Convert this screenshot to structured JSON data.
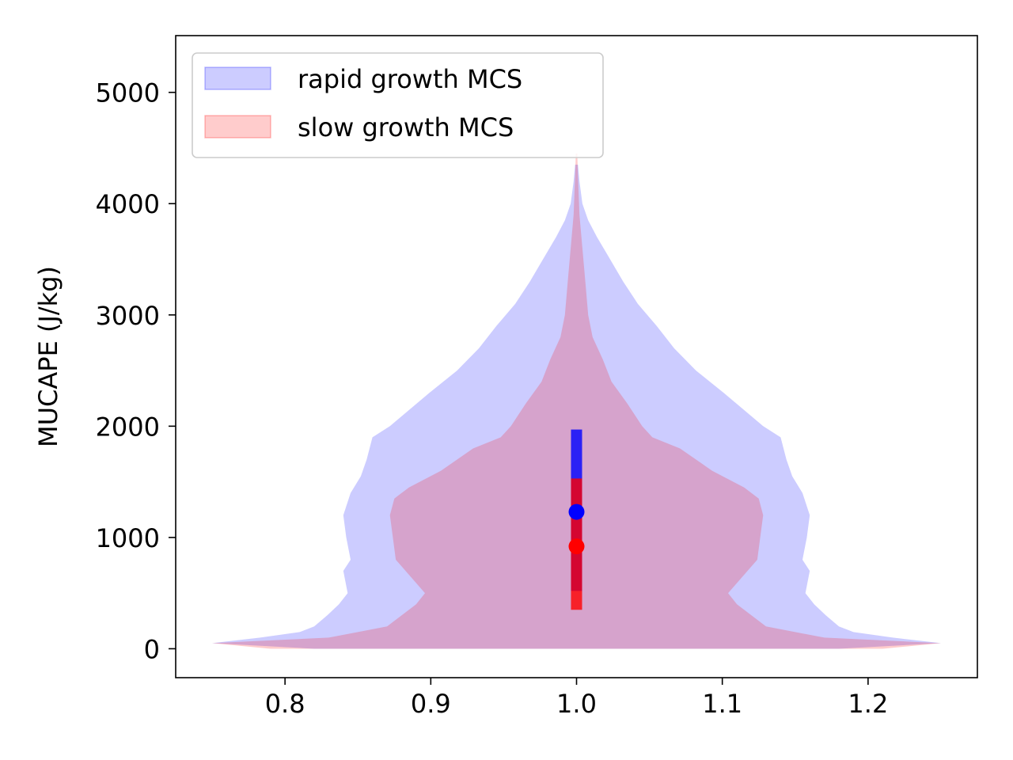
{
  "chart_data": {
    "type": "violin",
    "title": "",
    "xlabel": "",
    "ylabel": "MUCAPE (J/kg)",
    "xlim": [
      0.725,
      1.275
    ],
    "ylim": [
      -260,
      5510
    ],
    "xticks": [
      0.8,
      0.9,
      1.0,
      1.1,
      1.2
    ],
    "xtick_labels": [
      "0.8",
      "0.9",
      "1.0",
      "1.1",
      "1.2"
    ],
    "yticks": [
      0,
      1000,
      2000,
      3000,
      4000,
      5000
    ],
    "ytick_labels": [
      "0",
      "1000",
      "2000",
      "3000",
      "4000",
      "5000"
    ],
    "grid": false,
    "legend_position": "top-left",
    "position": 1.0,
    "series": [
      {
        "name": "rapid growth MCS",
        "color": "#0000ff",
        "fill_alpha": 0.2,
        "profile": [
          [
            0,
            0.18
          ],
          [
            50,
            0.25
          ],
          [
            100,
            0.217
          ],
          [
            150,
            0.19
          ],
          [
            200,
            0.18
          ],
          [
            300,
            0.171
          ],
          [
            400,
            0.163
          ],
          [
            500,
            0.157
          ],
          [
            700,
            0.16
          ],
          [
            800,
            0.155
          ],
          [
            1000,
            0.158
          ],
          [
            1200,
            0.16
          ],
          [
            1400,
            0.155
          ],
          [
            1550,
            0.148
          ],
          [
            1700,
            0.144
          ],
          [
            1900,
            0.14
          ],
          [
            2000,
            0.128
          ],
          [
            2100,
            0.119
          ],
          [
            2300,
            0.101
          ],
          [
            2500,
            0.082
          ],
          [
            2700,
            0.067
          ],
          [
            2900,
            0.055
          ],
          [
            3100,
            0.042
          ],
          [
            3300,
            0.032
          ],
          [
            3500,
            0.023
          ],
          [
            3700,
            0.014
          ],
          [
            3850,
            0.008
          ],
          [
            4000,
            0.004
          ],
          [
            4200,
            0.002
          ],
          [
            4350,
            0.001
          ]
        ],
        "median": 1230,
        "q1": 520,
        "q3": 1970
      },
      {
        "name": "slow growth MCS",
        "color": "#ff0000",
        "fill_alpha": 0.2,
        "profile": [
          [
            0,
            0.21
          ],
          [
            50,
            0.25
          ],
          [
            100,
            0.17
          ],
          [
            150,
            0.15
          ],
          [
            200,
            0.13
          ],
          [
            300,
            0.12
          ],
          [
            400,
            0.11
          ],
          [
            500,
            0.104
          ],
          [
            800,
            0.124
          ],
          [
            1000,
            0.126
          ],
          [
            1200,
            0.128
          ],
          [
            1350,
            0.125
          ],
          [
            1450,
            0.115
          ],
          [
            1600,
            0.093
          ],
          [
            1800,
            0.071
          ],
          [
            1900,
            0.052
          ],
          [
            2000,
            0.045
          ],
          [
            2200,
            0.035
          ],
          [
            2400,
            0.024
          ],
          [
            2600,
            0.018
          ],
          [
            2800,
            0.011
          ],
          [
            3000,
            0.008
          ],
          [
            3300,
            0.006
          ],
          [
            3600,
            0.004
          ],
          [
            3900,
            0.002
          ],
          [
            4250,
            0.001
          ],
          [
            4450,
            0.0005
          ]
        ],
        "median": 920,
        "q1": 350,
        "q3": 1530
      }
    ]
  }
}
